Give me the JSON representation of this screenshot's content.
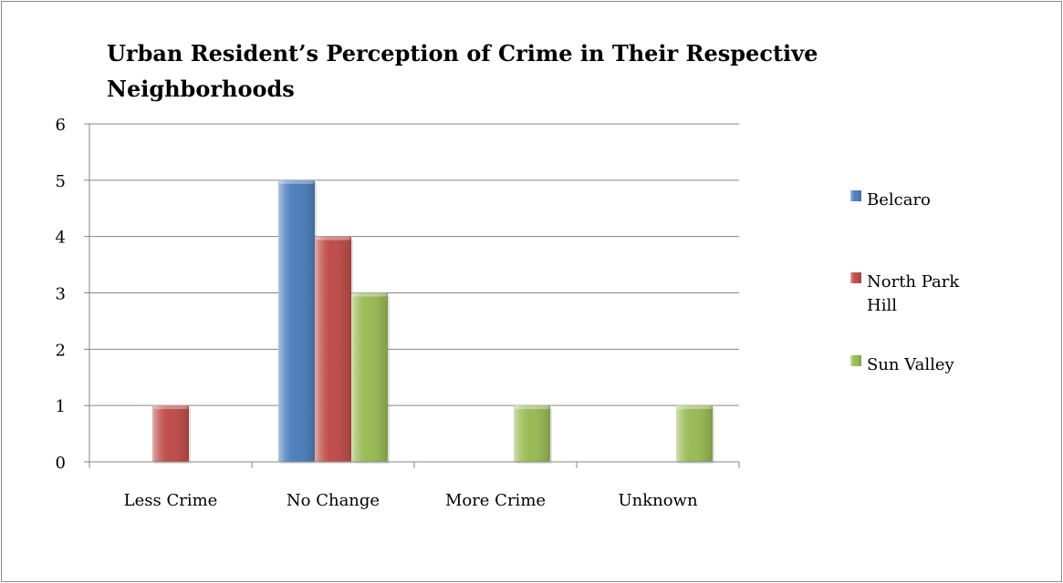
{
  "chart_data": {
    "type": "bar",
    "title": "Urban Resident’s Perception of Crime in Their Respective Neighborhoods",
    "title_lines": [
      "Urban Resident’s Perception of Crime in Their Respective",
      "Neighborhoods"
    ],
    "categories": [
      "Less Crime",
      "No Change",
      "More Crime",
      "Unknown"
    ],
    "series": [
      {
        "name": "Belcaro",
        "name_lines": [
          "Belcaro"
        ],
        "color": "#4f81bd",
        "values": [
          0,
          5,
          0,
          0
        ]
      },
      {
        "name": "North Park Hill",
        "name_lines": [
          "North Park",
          "Hill"
        ],
        "color": "#c0504d",
        "values": [
          1,
          4,
          0,
          0
        ]
      },
      {
        "name": "Sun Valley",
        "name_lines": [
          "Sun Valley"
        ],
        "color": "#9bbb59",
        "values": [
          0,
          3,
          1,
          1
        ]
      }
    ],
    "y_ticks": [
      "0",
      "1",
      "2",
      "3",
      "4",
      "5",
      "6"
    ],
    "ylim": [
      0,
      6
    ],
    "xlabel": "",
    "ylabel": "",
    "grid": true,
    "legend_position": "right"
  }
}
